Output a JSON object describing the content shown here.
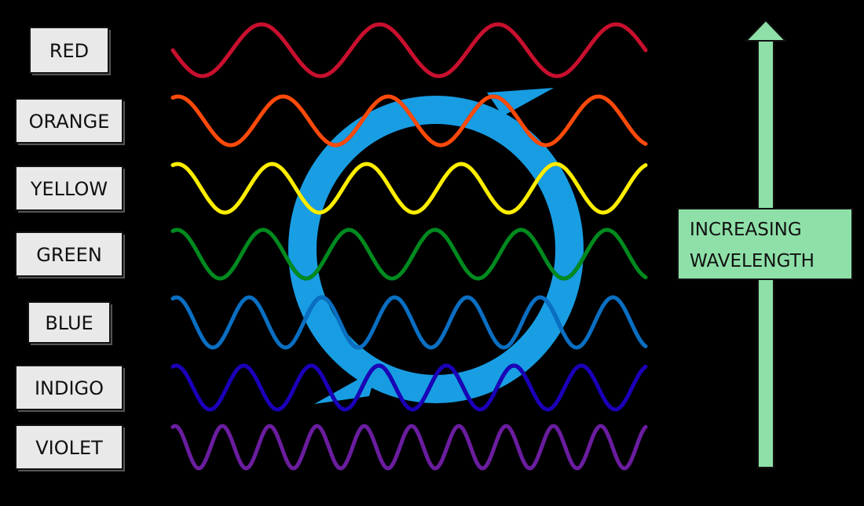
{
  "colors": [
    {
      "name": "RED",
      "hex": "#c8102e",
      "cycles": 4
    },
    {
      "name": "ORANGE",
      "hex": "#ff4a0a",
      "cycles": 4.5
    },
    {
      "name": "YELLOW",
      "hex": "#ffee00",
      "cycles": 5
    },
    {
      "name": "GREEN",
      "hex": "#008a1f",
      "cycles": 5.5
    },
    {
      "name": "BLUE",
      "hex": "#0a6fc2",
      "cycles": 6.5
    },
    {
      "name": "INDIGO",
      "hex": "#1a00b8",
      "cycles": 7
    },
    {
      "name": "VIOLET",
      "hex": "#6a1d9e",
      "cycles": 10
    }
  ],
  "label_fill": "#e9e9e9",
  "arrow": {
    "label_line1": "INCREASING",
    "label_line2": "WAVELENGTH",
    "fill": "#8ee0a8"
  },
  "watermark": {
    "color": "#1aa6f0",
    "icon": "logo-ring-icon"
  }
}
